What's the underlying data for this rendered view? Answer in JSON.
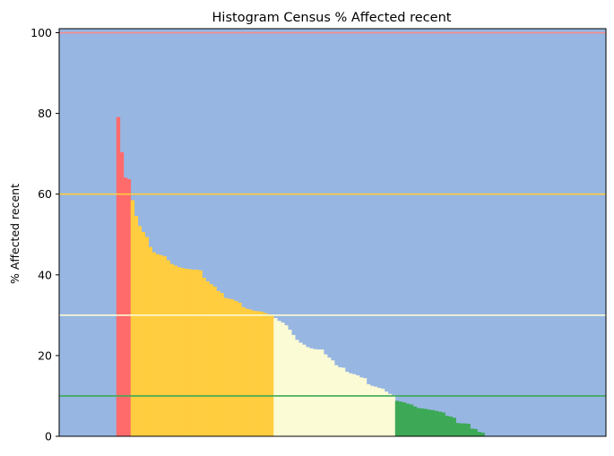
{
  "chart_data": {
    "type": "bar",
    "title": "Histogram Census % Affected recent",
    "xlabel": "",
    "ylabel": "% Affected recent",
    "ylim": [
      0,
      101
    ],
    "yticks": [
      0,
      20,
      40,
      60,
      80,
      100
    ],
    "grid": false,
    "x_tick_labels": false,
    "background_color": "#97b6e2",
    "reference_lines": [
      {
        "y": 100,
        "color": "#ff8a8a"
      },
      {
        "y": 60,
        "color": "#ffcc3f"
      },
      {
        "y": 30,
        "color": "#fbfbd5"
      },
      {
        "y": 10,
        "color": "#3da956"
      }
    ],
    "bands": [
      {
        "min": 60,
        "max": 100,
        "color": "#ff6b6b"
      },
      {
        "min": 30,
        "max": 60,
        "color": "#ffcd3f"
      },
      {
        "min": 10,
        "max": 30,
        "color": "#fbfbd5"
      },
      {
        "min": 0,
        "max": 10,
        "color": "#3da956"
      }
    ],
    "values": [
      0,
      0,
      0,
      0,
      0,
      0,
      0,
      0,
      0,
      0,
      0,
      0,
      0,
      0,
      0,
      0,
      79.1,
      70.4,
      64.1,
      63.7,
      58.5,
      54.6,
      52.1,
      50.6,
      49.4,
      46.9,
      45.6,
      45.1,
      44.9,
      44.6,
      43.6,
      42.7,
      42.3,
      41.9,
      41.7,
      41.5,
      41.4,
      41.3,
      41.3,
      41.1,
      39.3,
      38.4,
      37.7,
      37.1,
      36.0,
      35.5,
      34.3,
      34.1,
      33.9,
      33.5,
      33.1,
      32.0,
      31.6,
      31.4,
      31.1,
      31.0,
      30.9,
      30.6,
      30.3,
      30.1,
      29.3,
      28.6,
      28.2,
      27.5,
      26.4,
      25.1,
      23.9,
      23.2,
      22.7,
      22.1,
      21.8,
      21.6,
      21.5,
      21.5,
      20.3,
      19.5,
      18.8,
      17.6,
      17.1,
      17.0,
      16.0,
      15.6,
      15.4,
      15.1,
      14.6,
      14.4,
      12.9,
      12.5,
      12.3,
      12.0,
      11.8,
      11.1,
      10.5,
      10.2,
      8.8,
      8.6,
      8.4,
      8.1,
      7.9,
      7.4,
      7.0,
      6.9,
      6.8,
      6.6,
      6.5,
      6.3,
      6.1,
      5.9,
      5.1,
      4.9,
      4.6,
      3.3,
      3.2,
      3.2,
      3.1,
      1.9,
      1.8,
      1.1,
      0.9,
      0,
      0,
      0,
      0,
      0,
      0,
      0,
      0,
      0,
      0,
      0,
      0,
      0,
      0,
      0,
      0,
      0,
      0,
      0,
      0,
      0,
      0,
      0,
      0,
      0,
      0,
      0,
      0,
      0,
      0,
      0,
      0,
      0,
      0
    ]
  }
}
